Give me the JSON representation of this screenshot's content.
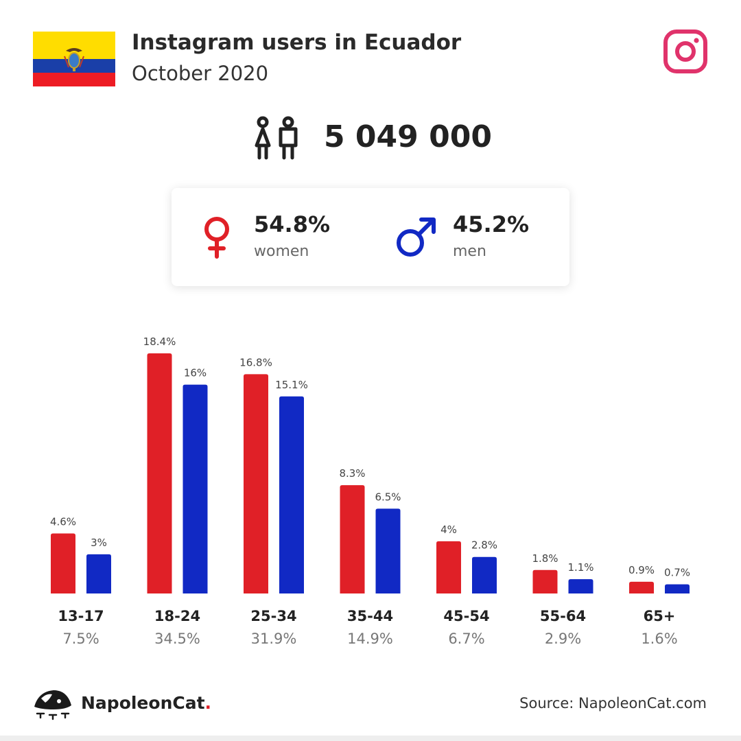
{
  "header": {
    "title": "Instagram users in Ecuador",
    "subtitle": "October 2020",
    "flag_colors": [
      "#ffdd00",
      "#1a3fa8",
      "#ed1c24"
    ]
  },
  "total": {
    "value": "5 049 000",
    "icon": "people-icon"
  },
  "gender": {
    "women": {
      "percent": "54.8%",
      "label": "women",
      "icon": "female-symbol-icon",
      "color": "#e02027"
    },
    "men": {
      "percent": "45.2%",
      "label": "men",
      "icon": "male-symbol-icon",
      "color": "#1129c4"
    }
  },
  "chart_data": {
    "type": "bar",
    "categories": [
      "13-17",
      "18-24",
      "25-34",
      "35-44",
      "45-54",
      "55-64",
      "65+"
    ],
    "category_totals": [
      "7.5%",
      "34.5%",
      "31.9%",
      "14.9%",
      "6.7%",
      "2.9%",
      "1.6%"
    ],
    "series": [
      {
        "name": "women",
        "color": "#e02027",
        "values": [
          4.6,
          18.4,
          16.8,
          8.3,
          4,
          1.8,
          0.9
        ],
        "labels": [
          "4.6%",
          "18.4%",
          "16.8%",
          "8.3%",
          "4%",
          "1.8%",
          "0.9%"
        ]
      },
      {
        "name": "men",
        "color": "#1129c4",
        "values": [
          3,
          16,
          15.1,
          6.5,
          2.8,
          1.1,
          0.7
        ],
        "labels": [
          "3%",
          "16%",
          "15.1%",
          "6.5%",
          "2.8%",
          "1.1%",
          "0.7%"
        ]
      }
    ],
    "ylim": [
      0,
      18.4
    ],
    "grid": false
  },
  "footer": {
    "brand": "NapoleonCat",
    "brand_dot": ".",
    "source": "Source: NapoleonCat.com"
  }
}
